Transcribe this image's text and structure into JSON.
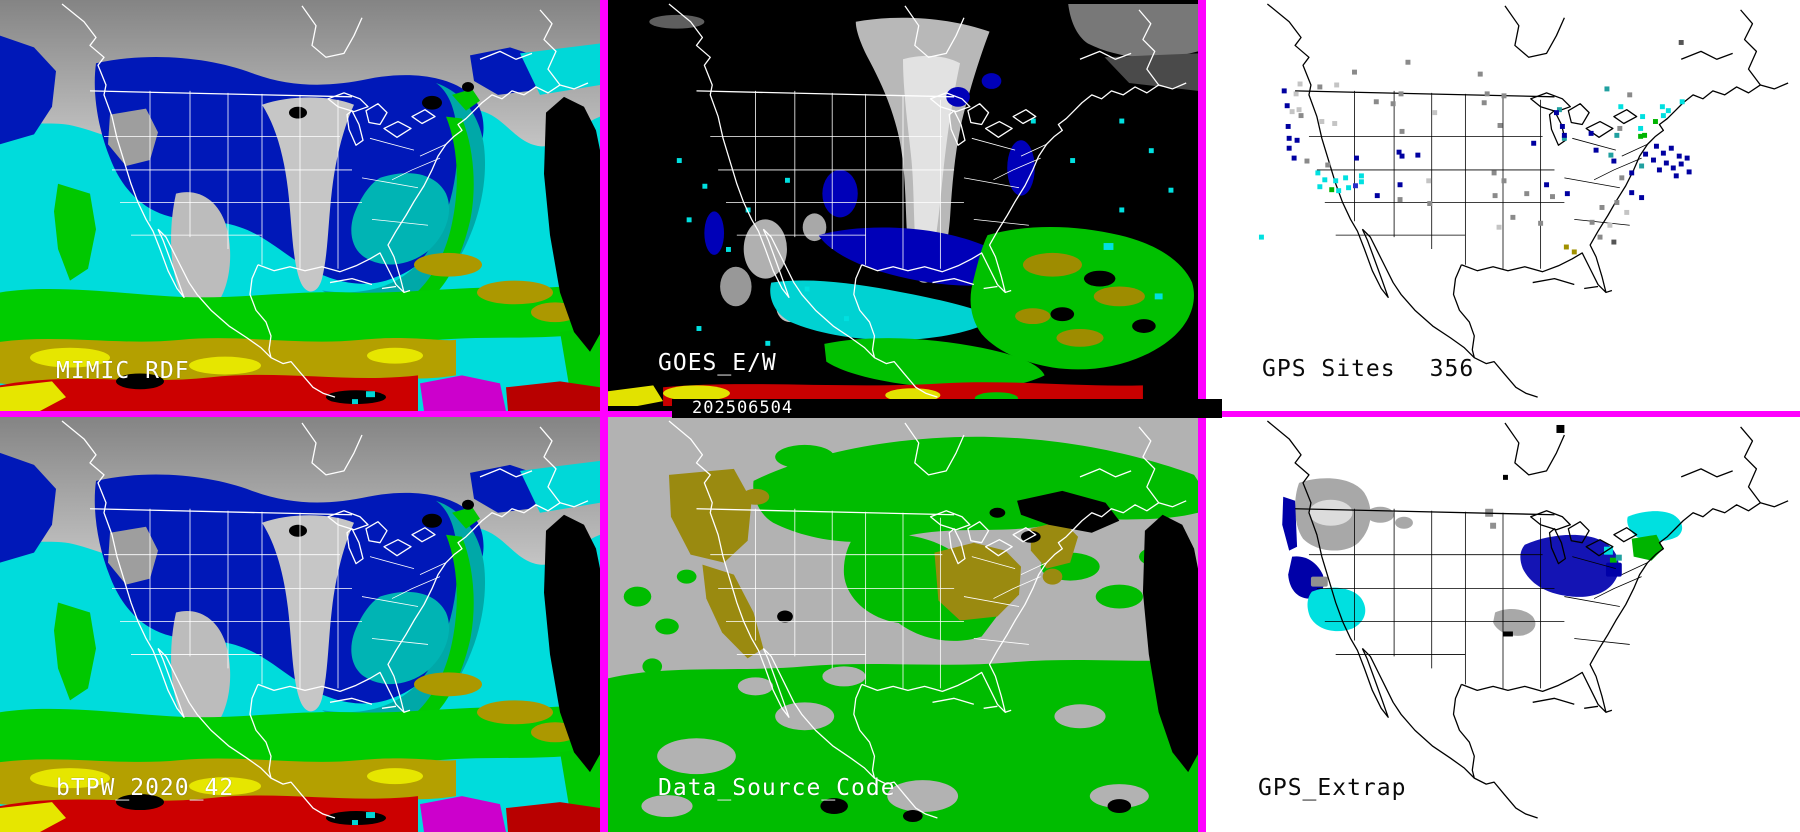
{
  "panels": {
    "mimic": {
      "label": "MIMIC RDF"
    },
    "goes": {
      "label": "GOES_E/W",
      "timestamp": "202506504"
    },
    "gps_sites": {
      "label": "GPS Sites",
      "count": "356"
    },
    "btpw": {
      "label": "bTPW_2020_42"
    },
    "data_source": {
      "label": "Data_Source_Code"
    },
    "gps_extrap": {
      "label": "GPS_Extrap"
    }
  },
  "colors": {
    "magenta_border": "#ff00ff",
    "tpw_cyan": "#00dcdc",
    "tpw_gray_dark": "#8a8a8a",
    "tpw_gray_light": "#cccccc",
    "tpw_navy": "#0018b8",
    "tpw_gray_tongue": "#c6c6c6",
    "tpw_gray_patch": "#bcbcbc",
    "tpw_teal": "#00a8a8",
    "tpw_teal2": "#00b4b4",
    "tpw_green": "#00c800",
    "tpw_green_band": "#00cc00",
    "tpw_olive": "#b4a000",
    "tpw_yellow": "#e6e600",
    "tpw_red": "#cc0000",
    "tpw_red_dark": "#b80000",
    "tpw_magenta": "#cc00cc",
    "goes_gray": "#b8b8b8",
    "goes_gray_core": "#e2e2e2",
    "goes_gray_dim": "#787878",
    "goes_navy": "#0000b8",
    "goes_cyan": "#00d2d2",
    "goes_green": "#00c000",
    "goes_olive": "#9e8c00",
    "goes_red": "#c80000",
    "goes_yellow": "#e2e200",
    "dsc_bg": "#b2b2b2",
    "dsc_green": "#00bc00",
    "dsc_olive": "#9a8a10",
    "ex_gray": "#a8a8a8",
    "ex_gray_light": "#dcdcdc",
    "ex_navy": "#0000a8",
    "ex_cyan": "#00e0e0",
    "ex_lakes": "#1414b4",
    "ex_green": "#00b400",
    "black": "#000000",
    "white": "#ffffff"
  },
  "dot_colors": {
    "g": "#8a8a8a",
    "lg": "#c4c4c4",
    "dg": "#555555",
    "n": "#0000a0",
    "b": "#2830c8",
    "c": "#00e0e0",
    "t": "#20a0a0",
    "gr": "#00b400",
    "ol": "#a09000"
  },
  "gps_dots": [
    [
      204,
      63,
      "g"
    ],
    [
      150,
      73,
      "g"
    ],
    [
      277,
      75,
      "g"
    ],
    [
      95,
      85,
      "lg"
    ],
    [
      115,
      88,
      "g"
    ],
    [
      132,
      86,
      "lg"
    ],
    [
      79,
      92,
      "n"
    ],
    [
      91,
      95,
      "lg"
    ],
    [
      197,
      95,
      "g"
    ],
    [
      284,
      95,
      "g"
    ],
    [
      301,
      97,
      "g"
    ],
    [
      172,
      103,
      "g"
    ],
    [
      189,
      105,
      "g"
    ],
    [
      82,
      107,
      "n"
    ],
    [
      94,
      111,
      "lg"
    ],
    [
      87,
      113,
      "lg"
    ],
    [
      231,
      114,
      "lg"
    ],
    [
      357,
      111,
      "t"
    ],
    [
      96,
      117,
      "g"
    ],
    [
      117,
      123,
      "lg"
    ],
    [
      130,
      125,
      "lg"
    ],
    [
      83,
      128,
      "n"
    ],
    [
      198,
      133,
      "g"
    ],
    [
      297,
      127,
      "g"
    ],
    [
      281,
      104,
      "g"
    ],
    [
      84,
      140,
      "n"
    ],
    [
      92,
      142,
      "n"
    ],
    [
      331,
      145,
      "n"
    ],
    [
      362,
      140,
      "t"
    ],
    [
      84,
      150,
      "n"
    ],
    [
      195,
      154,
      "n"
    ],
    [
      198,
      158,
      "n"
    ],
    [
      214,
      157,
      "n"
    ],
    [
      102,
      163,
      "g"
    ],
    [
      89,
      160,
      "n"
    ],
    [
      123,
      167,
      "g"
    ],
    [
      152,
      160,
      "n"
    ],
    [
      157,
      178,
      "c"
    ],
    [
      113,
      175,
      "c"
    ],
    [
      120,
      182,
      "c"
    ],
    [
      131,
      183,
      "c"
    ],
    [
      141,
      180,
      "c"
    ],
    [
      115,
      189,
      "c"
    ],
    [
      127,
      192,
      "gr"
    ],
    [
      134,
      193,
      "c"
    ],
    [
      144,
      190,
      "c"
    ],
    [
      151,
      188,
      "b"
    ],
    [
      157,
      184,
      "c"
    ],
    [
      196,
      187,
      "n"
    ],
    [
      225,
      183,
      "lg"
    ],
    [
      196,
      202,
      "g"
    ],
    [
      173,
      198,
      "n"
    ],
    [
      226,
      206,
      "g"
    ],
    [
      291,
      175,
      "g"
    ],
    [
      301,
      183,
      "g"
    ],
    [
      324,
      196,
      "g"
    ],
    [
      292,
      198,
      "g"
    ],
    [
      344,
      187,
      "n"
    ],
    [
      365,
      196,
      "n"
    ],
    [
      350,
      199,
      "g"
    ],
    [
      310,
      220,
      "g"
    ],
    [
      296,
      230,
      "lg"
    ],
    [
      338,
      226,
      "g"
    ],
    [
      455,
      148,
      "n"
    ],
    [
      462,
      155,
      "n"
    ],
    [
      470,
      150,
      "n"
    ],
    [
      478,
      158,
      "n"
    ],
    [
      465,
      165,
      "n"
    ],
    [
      472,
      170,
      "n"
    ],
    [
      458,
      172,
      "n"
    ],
    [
      480,
      166,
      "n"
    ],
    [
      486,
      160,
      "n"
    ],
    [
      475,
      178,
      "n"
    ],
    [
      488,
      174,
      "n"
    ],
    [
      452,
      162,
      "n"
    ],
    [
      444,
      156,
      "n"
    ],
    [
      440,
      168,
      "t"
    ],
    [
      430,
      175,
      "n"
    ],
    [
      418,
      130,
      "g"
    ],
    [
      428,
      96,
      "g"
    ],
    [
      480,
      43,
      "dg"
    ],
    [
      405,
      90,
      "t"
    ],
    [
      419,
      108,
      "c"
    ],
    [
      461,
      108,
      "c"
    ],
    [
      467,
      112,
      "c"
    ],
    [
      481,
      103,
      "c"
    ],
    [
      462,
      117,
      "c"
    ],
    [
      441,
      118,
      "c"
    ],
    [
      454,
      123,
      "gr"
    ],
    [
      439,
      130,
      "c"
    ],
    [
      443,
      137,
      "gr"
    ],
    [
      439,
      138,
      "gr"
    ],
    [
      354,
      114,
      "n"
    ],
    [
      360,
      128,
      "n"
    ],
    [
      362,
      137,
      "n"
    ],
    [
      389,
      135,
      "n"
    ],
    [
      415,
      137,
      "t"
    ],
    [
      394,
      152,
      "n"
    ],
    [
      409,
      157,
      "t"
    ],
    [
      412,
      163,
      "n"
    ],
    [
      420,
      180,
      "g"
    ],
    [
      430,
      195,
      "n"
    ],
    [
      415,
      205,
      "g"
    ],
    [
      440,
      200,
      "n"
    ],
    [
      425,
      215,
      "lg"
    ],
    [
      400,
      210,
      "g"
    ],
    [
      390,
      225,
      "g"
    ],
    [
      408,
      228,
      "lg"
    ],
    [
      398,
      240,
      "g"
    ],
    [
      412,
      245,
      "dg"
    ],
    [
      56,
      240,
      "c"
    ],
    [
      364,
      250,
      "ol"
    ],
    [
      372,
      255,
      "ol"
    ]
  ]
}
